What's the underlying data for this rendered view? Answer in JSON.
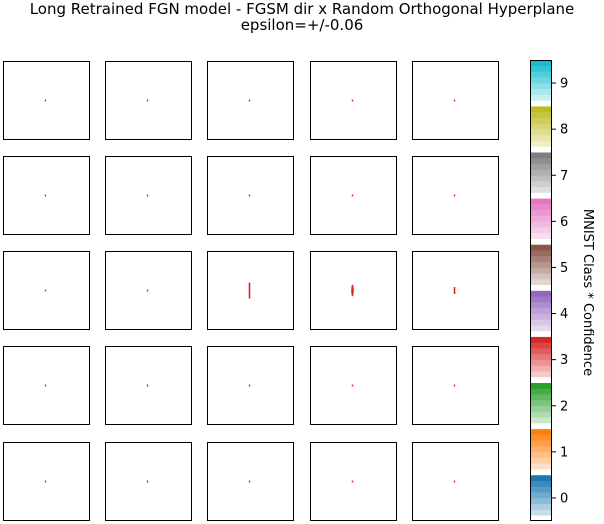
{
  "title_line1": "Long Retrained FGN model - FGSM dir x Random Orthogonal Hyperplane",
  "title_line2": "epsilon=+/-0.06",
  "chart_data": {
    "type": "heatmap",
    "title": "Long Retrained FGN model - FGSM dir x Random Orthogonal Hyperplane",
    "subtitle": "epsilon=+/-0.06",
    "grid_rows": 5,
    "grid_cols": 5,
    "panel_axes_ticks": false,
    "panels": [
      [
        {
          "class": 3,
          "mark": "dot"
        },
        {
          "class": 3,
          "mark": "dot"
        },
        {
          "class": 3,
          "mark": "dot"
        },
        {
          "class": 3,
          "mark": "dot"
        },
        {
          "class": 3,
          "mark": "dot"
        }
      ],
      [
        {
          "class": 3,
          "mark": "dot"
        },
        {
          "class": 3,
          "mark": "dot"
        },
        {
          "class": 3,
          "mark": "dot"
        },
        {
          "class": 3,
          "mark": "dot"
        },
        {
          "class": 3,
          "mark": "dot"
        }
      ],
      [
        {
          "class": 3,
          "mark": "dot"
        },
        {
          "class": 3,
          "mark": "dot"
        },
        {
          "class": 3,
          "mark": "streak"
        },
        {
          "class": 3,
          "mark": "blob"
        },
        {
          "class": 3,
          "mark": "small-streak"
        }
      ],
      [
        {
          "class": 3,
          "mark": "dot"
        },
        {
          "class": 3,
          "mark": "dot"
        },
        {
          "class": 3,
          "mark": "dot"
        },
        {
          "class": 3,
          "mark": "dot"
        },
        {
          "class": 3,
          "mark": "dot"
        }
      ],
      [
        {
          "class": 3,
          "mark": "dot"
        },
        {
          "class": 3,
          "mark": "dot"
        },
        {
          "class": 3,
          "mark": "dot"
        },
        {
          "class": 3,
          "mark": "dot"
        },
        {
          "class": 3,
          "mark": "dot"
        }
      ]
    ],
    "colorbar": {
      "label": "MNIST Class * Confidence",
      "range": [
        -0.5,
        9.5
      ],
      "ticks": [
        "0",
        "1",
        "2",
        "3",
        "4",
        "5",
        "6",
        "7",
        "8",
        "9"
      ],
      "class_colors": [
        "#1f77b4",
        "#ff7f0e",
        "#2ca02c",
        "#d62728",
        "#9467bd",
        "#8c564b",
        "#e377c2",
        "#7f7f7f",
        "#bcbd22",
        "#17becf"
      ]
    }
  }
}
